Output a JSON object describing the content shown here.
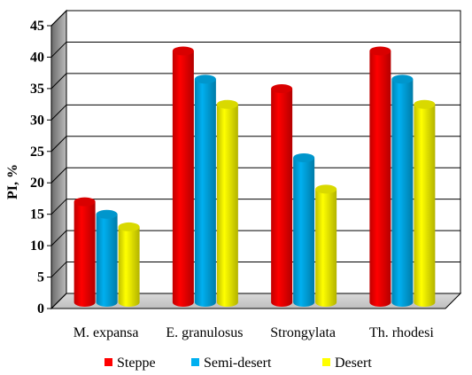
{
  "chart_data": {
    "type": "bar",
    "style": "3d-cylinder",
    "categories": [
      "M. expansa",
      "E. granulosus",
      "Strongylata",
      "Th. rhodesi"
    ],
    "series": [
      {
        "name": "Steppe",
        "color": "#ff0000",
        "values": [
          16,
          40,
          34,
          40
        ]
      },
      {
        "name": "Semi-desert",
        "color": "#00b0f0",
        "values": [
          14,
          35.5,
          23,
          35.5
        ]
      },
      {
        "name": "Desert",
        "color": "#ffff00",
        "values": [
          12,
          31.5,
          18,
          31.5
        ]
      }
    ],
    "ylabel": "PI, %",
    "ylim": [
      0,
      45
    ],
    "yticks": [
      "0",
      "5",
      "10",
      "15",
      "20",
      "25",
      "30",
      "35",
      "40",
      "45"
    ],
    "grid": true,
    "legend_position": "bottom"
  }
}
